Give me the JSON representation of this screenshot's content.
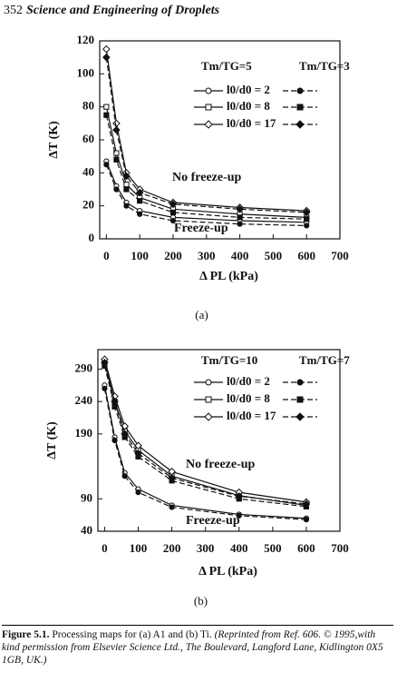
{
  "header": {
    "page": "352",
    "title": "Science and Engineering of Droplets"
  },
  "chart_data": [
    {
      "type": "line",
      "label": "(a)",
      "xlabel": "Δ PL (kPa)",
      "ylabel": "ΔT (K)",
      "legend_columns": [
        "Tm/TG=5",
        "Tm/TG=3"
      ],
      "legend_rows": [
        "l0/d0 = 2",
        "l0/d0 = 8",
        "l0/d0 = 17"
      ],
      "annotations": [
        "No freeze-up",
        "Freeze-up"
      ],
      "x": [
        0,
        30,
        60,
        100,
        200,
        400,
        600
      ],
      "xlim": [
        -20,
        700
      ],
      "xticks": [
        0,
        100,
        200,
        300,
        400,
        500,
        600,
        700
      ],
      "ylim": [
        0,
        120
      ],
      "yticks": [
        0,
        20,
        40,
        60,
        80,
        100,
        120
      ],
      "series": [
        {
          "marker": "open-circle",
          "dash": "solid",
          "values": [
            47,
            32,
            22,
            17,
            13,
            11,
            10
          ]
        },
        {
          "marker": "open-square",
          "dash": "solid",
          "values": [
            80,
            52,
            33,
            25,
            18,
            15,
            13
          ]
        },
        {
          "marker": "open-diamond",
          "dash": "solid",
          "values": [
            115,
            70,
            40,
            30,
            22,
            19,
            17
          ]
        },
        {
          "marker": "filled-circle",
          "dash": "dashed",
          "values": [
            45,
            30,
            20,
            15,
            11,
            9,
            8
          ]
        },
        {
          "marker": "filled-square",
          "dash": "dashed",
          "values": [
            75,
            48,
            30,
            23,
            16,
            13,
            12
          ]
        },
        {
          "marker": "filled-diamond",
          "dash": "dashed",
          "values": [
            110,
            66,
            38,
            28,
            21,
            18,
            16
          ]
        }
      ]
    },
    {
      "type": "line",
      "label": "(b)",
      "xlabel": "Δ PL (kPa)",
      "ylabel": "ΔT (K)",
      "legend_columns": [
        "Tm/TG=10",
        "Tm/TG=7"
      ],
      "legend_rows": [
        "l0/d0 = 2",
        "l0/d0 = 8",
        "l0/d0 = 17"
      ],
      "annotations": [
        "No freeze-up",
        "Freeze-up"
      ],
      "x": [
        0,
        30,
        60,
        100,
        200,
        400,
        600
      ],
      "xlim": [
        -20,
        700
      ],
      "xticks": [
        0,
        100,
        200,
        300,
        400,
        500,
        600,
        700
      ],
      "ylim": [
        40,
        320
      ],
      "yticks": [
        40,
        90,
        190,
        240,
        290
      ],
      "series": [
        {
          "marker": "open-circle",
          "dash": "solid",
          "values": [
            265,
            185,
            130,
            105,
            80,
            66,
            60
          ]
        },
        {
          "marker": "open-square",
          "dash": "solid",
          "values": [
            300,
            240,
            195,
            165,
            125,
            95,
            80
          ]
        },
        {
          "marker": "open-diamond",
          "dash": "solid",
          "values": [
            305,
            248,
            202,
            172,
            132,
            100,
            85
          ]
        },
        {
          "marker": "filled-circle",
          "dash": "dashed",
          "values": [
            260,
            180,
            125,
            100,
            77,
            64,
            58
          ]
        },
        {
          "marker": "filled-square",
          "dash": "dashed",
          "values": [
            295,
            232,
            185,
            155,
            118,
            90,
            78
          ]
        },
        {
          "marker": "filled-diamond",
          "dash": "dashed",
          "values": [
            300,
            240,
            190,
            160,
            122,
            94,
            82
          ]
        }
      ]
    }
  ],
  "caption": {
    "label": "Figure 5.1.",
    "text": "Processing maps for (a) A1 and (b) Ti.",
    "note": "(Reprinted from Ref. 606. © 1995,with kind permission from Elsevier Science Ltd., The Boulevard, Langford Lane, Kidlington 0X5 1GB, UK.)"
  }
}
